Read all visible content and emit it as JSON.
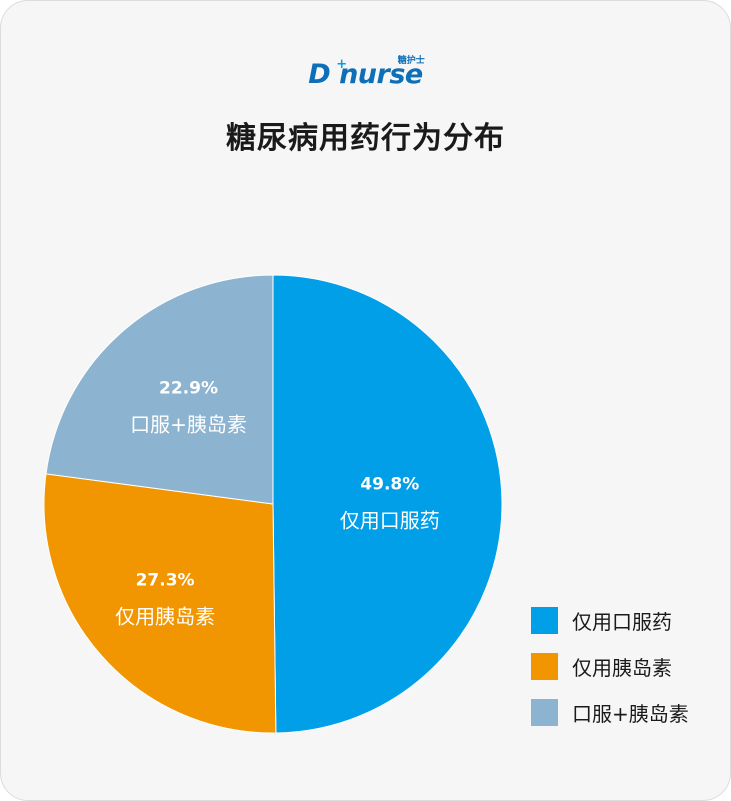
{
  "logo": {
    "text": "D nurse",
    "plus": "+",
    "cn": "糖护士"
  },
  "chart_data": {
    "type": "pie",
    "title": "糖尿病用药行为分布",
    "start": "12 o'clock, clockwise",
    "legend_position": "bottom-right",
    "slices": [
      {
        "label": "仅用口服药",
        "value": 49.8,
        "display": "49.8%",
        "color": "#009fe8"
      },
      {
        "label": "仅用胰岛素",
        "value": 27.3,
        "display": "27.3%",
        "color": "#f19601"
      },
      {
        "label": "口服+胰岛素",
        "value": 22.9,
        "display": "22.9%",
        "color": "#8cb4d0"
      }
    ]
  }
}
